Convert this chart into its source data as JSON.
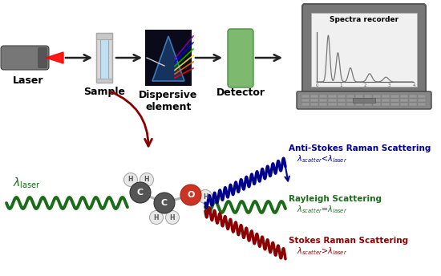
{
  "bg_color": "#ffffff",
  "laser_label": "Laser",
  "sample_label": "Sample",
  "dispersive_label": "Dispersive\nelement",
  "detector_label": "Detector",
  "spectra_label": "Spectra recorder",
  "anti_stokes_title": "Anti-Stokes Raman Scattering",
  "anti_stokes_sub": "λ$_{scatter}$<λ$_{laser}$",
  "rayleigh_title": "Rayleigh Scattering",
  "rayleigh_sub": "λ$_{scatter}$=λ$_{laser}$",
  "stokes_title": "Stokes Raman Scattering",
  "stokes_sub": "λ$_{scatter}$>λ$_{laser}$",
  "blue_color": "#00008B",
  "green_color": "#1a6b1a",
  "red_color": "#8B0000",
  "detector_green": "#7dba6f",
  "detector_green_edge": "#4a8f3f",
  "laptop_body": "#888888",
  "laptop_screen_bg": "#d0d0d0",
  "laptop_screen_inner": "#e8e8e8",
  "dark_red_arrow": "#8B0000",
  "label_fontsize": 9,
  "label_fontsize_bold": 9
}
